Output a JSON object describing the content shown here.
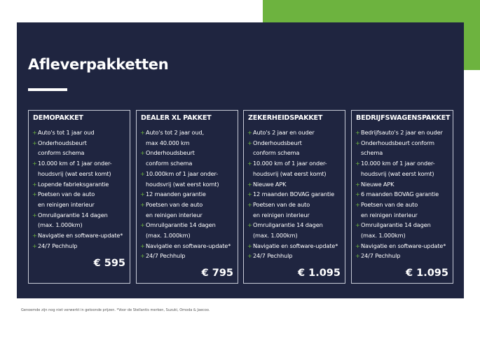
{
  "title": "Afleverpakketten",
  "colors": {
    "panel": "#1f2540",
    "accent": "#6db33f"
  },
  "packages": [
    {
      "name": "DEMOPAKKET",
      "price": "€ 595",
      "items": [
        [
          "Auto's tot 1 jaar oud"
        ],
        [
          "Onderhoudsbeurt",
          "conform schema"
        ],
        [
          "10.000 km of 1 jaar onder-",
          "houdsvrij (wat eerst komt)"
        ],
        [
          "Lopende fabrieksgarantie"
        ],
        [
          "Poetsen van de auto",
          "en reinigen interieur"
        ],
        [
          "Omruilgarantie 14 dagen",
          "(max. 1.000km)"
        ],
        [
          "Navigatie en software-update*"
        ],
        [
          "24/7 Pechhulp"
        ]
      ]
    },
    {
      "name": "DEALER XL PAKKET",
      "price": "€ 795",
      "items": [
        [
          "Auto's tot 2 jaar oud,",
          "max 40.000 km"
        ],
        [
          "Onderhoudsbeurt",
          "conform schema"
        ],
        [
          "10.000km of 1 jaar onder-",
          "houdsvrij (wat eerst komt)"
        ],
        [
          "12 maanden garantie"
        ],
        [
          "Poetsen van de auto",
          "en reinigen interieur"
        ],
        [
          "Omruilgarantie 14 dagen",
          "(max. 1.000km)"
        ],
        [
          "Navigatie en software-update*"
        ],
        [
          "24/7 Pechhulp"
        ]
      ]
    },
    {
      "name": "ZEKERHEIDSPAKKET",
      "price": "€ 1.095",
      "items": [
        [
          "Auto's 2 jaar en ouder"
        ],
        [
          "Onderhoudsbeurt",
          "conform schema"
        ],
        [
          "10.000 km of 1 jaar onder-",
          "houdsvrij (wat eerst komt)"
        ],
        [
          "Nieuwe APK"
        ],
        [
          "12 maanden BOVAG garantie"
        ],
        [
          "Poetsen van de auto",
          "en reinigen interieur"
        ],
        [
          "Omruilgarantie 14 dagen",
          "(max. 1.000km)"
        ],
        [
          "Navigatie en software-update*"
        ],
        [
          "24/7 Pechhulp"
        ]
      ]
    },
    {
      "name": "BEDRIJFSWAGENSPAKKET",
      "price": "€ 1.095",
      "items": [
        [
          "Bedrijfsauto's 2 jaar en ouder"
        ],
        [
          "Onderhoudsbeurt conform",
          "schema"
        ],
        [
          "10.000 km of 1 jaar onder-",
          "houdsvrij (wat eerst komt)"
        ],
        [
          "Nieuwe APK"
        ],
        [
          "6 maanden BOVAG garantie"
        ],
        [
          "Poetsen van de auto",
          "en reinigen interieur"
        ],
        [
          "Omruilgarantie 14 dagen",
          "(max. 1.000km)"
        ],
        [
          "Navigatie en software-update*"
        ],
        [
          "24/7 Pechhulp"
        ]
      ]
    }
  ],
  "footnote": "Genoemde zijn nog niet verwerkt in getoonde prijzen. *Voor de Stellantis merken, Suzuki, Omoda & Jaecoo."
}
